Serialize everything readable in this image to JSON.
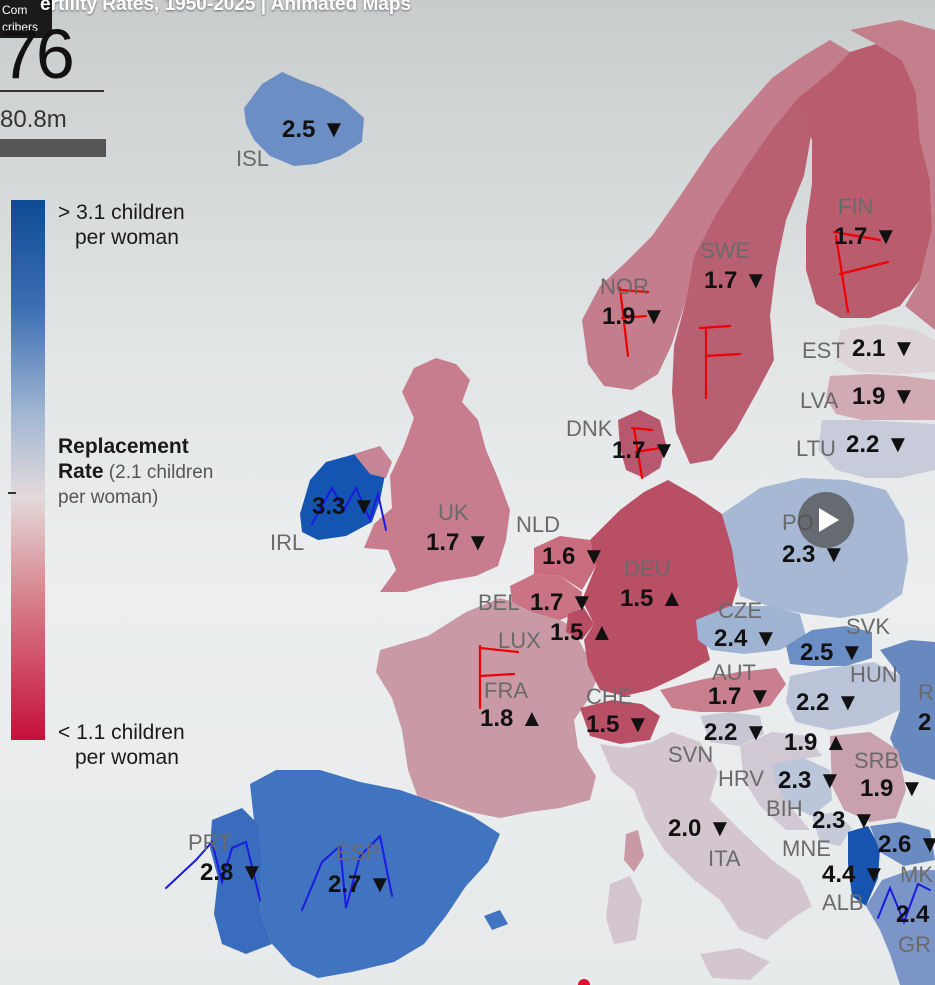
{
  "video": {
    "title": "ertility Rates, 1950-2025 | Animated Maps",
    "badge_line1": "Com",
    "badge_line2": "cribers",
    "year_fragment": "76",
    "population": "80.8m"
  },
  "legend": {
    "top": [
      "> 3.1 children",
      "per woman"
    ],
    "mid_bold": "Replacement",
    "mid_line2_bold": "Rate",
    "mid_line2_rest": " (2.1 children",
    "mid_line3": "per woman)",
    "bottom": [
      "< 1.1 children",
      "per woman"
    ]
  },
  "colors": {
    "high": "#0e4a95",
    "replacement": "#e3dadb",
    "low": "#c6103a"
  },
  "countries": [
    {
      "code": "ISL",
      "value": "2.5",
      "trend": "▼"
    },
    {
      "code": "NOR",
      "value": "1.9",
      "trend": "▼"
    },
    {
      "code": "SWE",
      "value": "1.7",
      "trend": "▼"
    },
    {
      "code": "FIN",
      "value": "1.7",
      "trend": "▼"
    },
    {
      "code": "EST",
      "value": "2.1",
      "trend": "▼"
    },
    {
      "code": "LVA",
      "value": "1.9",
      "trend": "▼"
    },
    {
      "code": "LTU",
      "value": "2.2",
      "trend": "▼"
    },
    {
      "code": "DNK",
      "value": "1.7",
      "trend": "▼"
    },
    {
      "code": "IRL",
      "value": "3.3",
      "trend": "▼"
    },
    {
      "code": "UK",
      "value": "1.7",
      "trend": "▼"
    },
    {
      "code": "NLD",
      "value": "1.6",
      "trend": "▼"
    },
    {
      "code": "BEL",
      "value": "1.7",
      "trend": "▼"
    },
    {
      "code": "LUX",
      "value": "1.5",
      "trend": "▲"
    },
    {
      "code": "DEU",
      "value": "1.5",
      "trend": "▲"
    },
    {
      "code": "POL",
      "value": "2.3",
      "trend": "▼"
    },
    {
      "code": "CZE",
      "value": "2.4",
      "trend": "▼"
    },
    {
      "code": "SVK",
      "value": "2.5",
      "trend": "▼"
    },
    {
      "code": "AUT",
      "value": "1.7",
      "trend": "▼"
    },
    {
      "code": "HUN",
      "value": "2.2",
      "trend": "▼"
    },
    {
      "code": "FRA",
      "value": "1.8",
      "trend": "▲"
    },
    {
      "code": "CHE",
      "value": "1.5",
      "trend": "▼"
    },
    {
      "code": "SVN",
      "value": "2.2",
      "trend": "▼"
    },
    {
      "code": "HRV",
      "value": "1.9",
      "trend": "▲"
    },
    {
      "code": "BIH",
      "value": "2.3",
      "trend": "▼"
    },
    {
      "code": "SRB",
      "value": "1.9",
      "trend": "▼"
    },
    {
      "code": "MNE",
      "value": "2.3",
      "trend": "▼"
    },
    {
      "code": "ITA",
      "value": "2.0",
      "trend": "▼"
    },
    {
      "code": "MKD",
      "value": "2.6",
      "trend": "▼"
    },
    {
      "code": "ALB",
      "value": "4.4",
      "trend": "▼"
    },
    {
      "code": "GRC",
      "value": "2.4",
      "trend": ""
    },
    {
      "code": "PRT",
      "value": "2.8",
      "trend": "▼"
    },
    {
      "code": "ESP",
      "value": "2.7",
      "trend": "▼"
    },
    {
      "code": "ROU",
      "value": "2",
      "trend": ""
    },
    {
      "code": "R",
      "value": "",
      "trend": ""
    }
  ],
  "labels": {
    "ISL": "ISL",
    "NOR": "NOR",
    "SWE": "SWE",
    "FIN": "FIN",
    "EST": "EST",
    "LVA": "LVA",
    "LTU": "LTU",
    "DNK": "DNK",
    "IRL": "IRL",
    "UK": "UK",
    "NLD": "NLD",
    "BEL": "BEL",
    "LUX": "LUX",
    "DEU": "DEU",
    "POL": "PO",
    "CZE": "CZE",
    "SVK": "SVK",
    "AUT": "AUT",
    "HUN": "HUN",
    "FRA": "FRA",
    "CHE": "CHE",
    "SVN": "SVN",
    "HRV": "HRV",
    "BIH": "BIH",
    "SRB": "SRB",
    "MNE": "MNE",
    "ITA": "ITA",
    "MKD": "MK",
    "ALB": "ALB",
    "GRC": "GR",
    "PRT": "PRT",
    "ESP": "ESP",
    "ROU": "R"
  }
}
